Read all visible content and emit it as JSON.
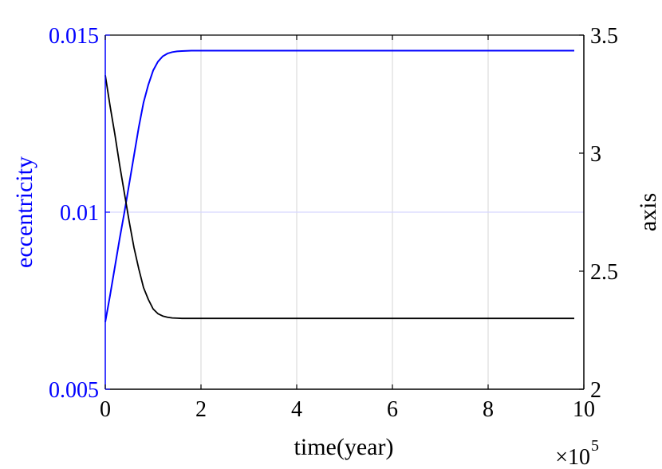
{
  "chart_data": {
    "type": "line",
    "xlabel": "time(year)",
    "x_exponent_label": "×10",
    "x_exponent_power": "5",
    "ylabel_left": "eccentricity",
    "ylabel_right": "axis",
    "xlim": [
      0,
      10
    ],
    "ylim_left": [
      0.005,
      0.015
    ],
    "ylim_right": [
      2,
      3.5
    ],
    "xticks": [
      0,
      2,
      4,
      6,
      8,
      10
    ],
    "xtick_labels": [
      "0",
      "2",
      "4",
      "6",
      "8",
      "10"
    ],
    "yticks_left": [
      0.005,
      0.01,
      0.015
    ],
    "ytick_labels_left": [
      "0.005",
      "0.01",
      "0.015"
    ],
    "yticks_right": [
      2,
      2.5,
      3,
      3.5
    ],
    "ytick_labels_right": [
      "2",
      "2.5",
      "3",
      "3.5"
    ],
    "grid": true,
    "colors": {
      "left_axis": "#0000ff",
      "right_axis": "#000000",
      "grid": "#dcdcdc",
      "ygrid": "#d6d6ff"
    },
    "series": [
      {
        "axis": "left",
        "color": "#0000ff",
        "x": [
          0,
          0.1,
          0.2,
          0.3,
          0.4,
          0.5,
          0.6,
          0.7,
          0.8,
          0.9,
          1.0,
          1.1,
          1.2,
          1.3,
          1.4,
          1.5,
          1.6,
          1.8,
          2.0,
          2.5,
          3.0,
          4.0,
          5.0,
          6.0,
          7.0,
          7.5,
          8.0,
          9.0,
          9.8
        ],
        "y": [
          0.0069,
          0.00765,
          0.00845,
          0.00925,
          0.01,
          0.0108,
          0.0116,
          0.0124,
          0.0131,
          0.0136,
          0.014,
          0.01425,
          0.0144,
          0.01448,
          0.01452,
          0.01454,
          0.01455,
          0.01456,
          0.01456,
          0.01456,
          0.01456,
          0.01456,
          0.01456,
          0.01456,
          0.01456,
          0.01456,
          0.01456,
          0.01456,
          0.01456
        ]
      },
      {
        "axis": "right",
        "color": "#000000",
        "x": [
          0,
          0.1,
          0.2,
          0.3,
          0.4,
          0.5,
          0.6,
          0.7,
          0.8,
          0.9,
          1.0,
          1.1,
          1.2,
          1.3,
          1.4,
          1.5,
          1.6,
          1.8,
          2.0,
          2.5,
          3.0,
          4.0,
          5.0,
          6.0,
          7.0,
          8.0,
          9.0,
          9.8
        ],
        "y": [
          3.33,
          3.2,
          3.08,
          2.95,
          2.83,
          2.71,
          2.6,
          2.51,
          2.43,
          2.38,
          2.34,
          2.32,
          2.31,
          2.305,
          2.302,
          2.301,
          2.3,
          2.3,
          2.3,
          2.3,
          2.3,
          2.3,
          2.3,
          2.3,
          2.3,
          2.3,
          2.3,
          2.3
        ]
      }
    ]
  }
}
